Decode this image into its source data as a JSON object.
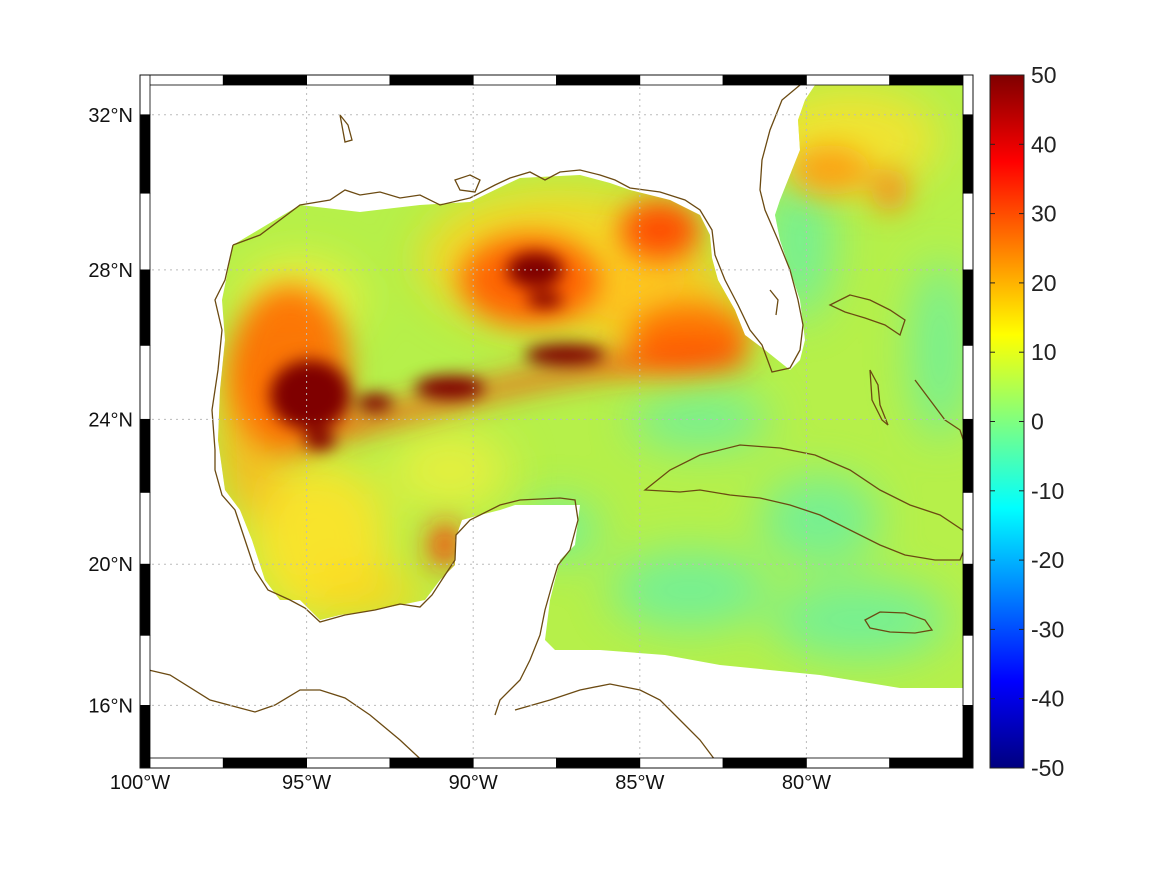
{
  "map": {
    "type": "heatmap",
    "projection": "mercator",
    "lon_range": [
      -100,
      -75
    ],
    "lat_range": [
      14.2,
      33
    ],
    "x_ticks": [
      "100°W",
      "95°W",
      "90°W",
      "85°W",
      "80°W"
    ],
    "x_tick_values": [
      -100,
      -95,
      -90,
      -85,
      -80
    ],
    "y_ticks": [
      "32°N",
      "28°N",
      "24°N",
      "20°N",
      "16°N"
    ],
    "y_tick_values": [
      32,
      28,
      24,
      20,
      16
    ],
    "grid": "dotted",
    "coast_color": "#6b4a12",
    "colormap": "jet"
  },
  "colorbar": {
    "range": [
      -50,
      50
    ],
    "ticks": [
      "50",
      "40",
      "30",
      "20",
      "10",
      "0",
      "-10",
      "-20",
      "-30",
      "-40",
      "-50"
    ],
    "tick_values": [
      50,
      40,
      30,
      20,
      10,
      0,
      -10,
      -20,
      -30,
      -40,
      -50
    ]
  },
  "chart_data": {
    "type": "heatmap",
    "xlabel": "",
    "ylabel": "",
    "xlim": [
      -100,
      -75
    ],
    "ylim": [
      14.2,
      33
    ],
    "zlim": [
      -50,
      50
    ],
    "background_value": 6,
    "hotspots": [
      {
        "lon": -94.5,
        "lat": 24.5,
        "value": 50
      },
      {
        "lon": -95.0,
        "lat": 26.0,
        "value": 38
      },
      {
        "lon": -92.5,
        "lat": 24.3,
        "value": 45
      },
      {
        "lon": -90.5,
        "lat": 24.8,
        "value": 50
      },
      {
        "lon": -88.0,
        "lat": 25.5,
        "value": 45
      },
      {
        "lon": -86.5,
        "lat": 25.6,
        "value": 50
      },
      {
        "lon": -88.0,
        "lat": 27.8,
        "value": 48
      },
      {
        "lon": -89.0,
        "lat": 27.0,
        "value": 35
      },
      {
        "lon": -84.5,
        "lat": 28.9,
        "value": 32
      },
      {
        "lon": -84.0,
        "lat": 26.5,
        "value": 28
      },
      {
        "lon": -82.5,
        "lat": 25.8,
        "value": 30
      },
      {
        "lon": -97.5,
        "lat": 23.5,
        "value": 22
      },
      {
        "lon": -90.5,
        "lat": 20.5,
        "value": 38
      },
      {
        "lon": -94.5,
        "lat": 19.0,
        "value": 16
      },
      {
        "lon": -79.5,
        "lat": 30.5,
        "value": 20
      },
      {
        "lon": -77.5,
        "lat": 30.0,
        "value": 24
      },
      {
        "lon": -76.0,
        "lat": 31.5,
        "value": 14
      },
      {
        "lon": -82.5,
        "lat": 21.0,
        "value": 2
      },
      {
        "lon": -80.5,
        "lat": 18.5,
        "value": 1
      },
      {
        "lon": -87.0,
        "lat": 22.0,
        "value": 0
      },
      {
        "lon": -79.0,
        "lat": 27.5,
        "value": 0
      }
    ]
  }
}
